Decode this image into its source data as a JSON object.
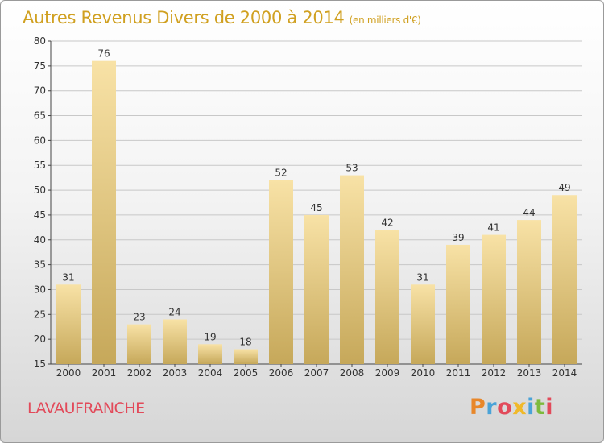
{
  "chart_data": {
    "type": "bar",
    "title": "Autres Revenus Divers de 2000 à 2014",
    "subtitle": "(en milliers d'€)",
    "categories": [
      "2000",
      "2001",
      "2002",
      "2003",
      "2004",
      "2005",
      "2006",
      "2007",
      "2008",
      "2009",
      "2010",
      "2011",
      "2012",
      "2013",
      "2014"
    ],
    "values": [
      31,
      76,
      23,
      24,
      19,
      18,
      52,
      45,
      53,
      42,
      31,
      39,
      41,
      44,
      49
    ],
    "ylim": [
      15,
      80
    ],
    "yticks": [
      15,
      20,
      25,
      30,
      35,
      40,
      45,
      50,
      55,
      60,
      65,
      70,
      75,
      80
    ],
    "xlabel": "",
    "ylabel": "",
    "grid": true,
    "colors": {
      "bar_top": "#f8e2a6",
      "bar_bottom": "#c6a85a",
      "title": "#d0a020",
      "grid": "#c8c8c8",
      "axis": "#444444"
    }
  },
  "footer": {
    "commune": "LAVAUFRANCHE",
    "logo": "Proxiti",
    "logo_colors": [
      "#e8872a",
      "#4aa3d8",
      "#e24a5a",
      "#f0b92a",
      "#4aa3d8",
      "#7dba3c",
      "#e24a5a"
    ]
  }
}
